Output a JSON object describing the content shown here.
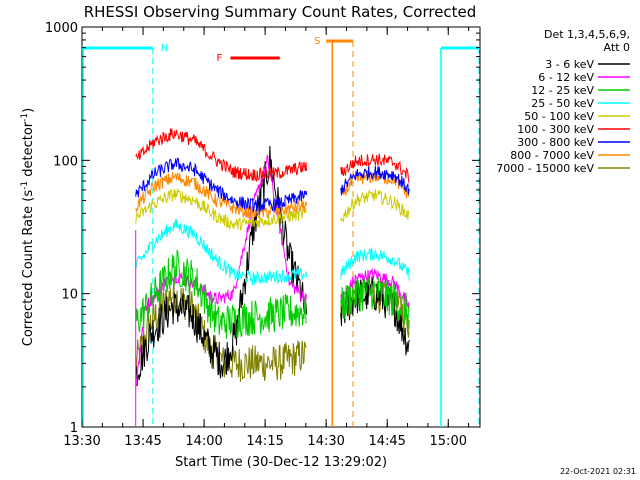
{
  "chart_data": {
    "type": "line",
    "title": "RHESSI Observing Summary Count Rates, Corrected",
    "xlabel": "Start Time (30-Dec-12 13:29:02)",
    "ylabel_main": "Corrected Count Rate (s",
    "ylabel_sup1": "-1",
    "ylabel_mid": " detector",
    "ylabel_sup2": "-1",
    "ylabel_end": ")",
    "yscale": "log",
    "ylim": [
      1,
      1000
    ],
    "xlim_minutes": [
      13.5,
      15.13
    ],
    "x_tick_labels": [
      "13:30",
      "13:45",
      "14:00",
      "14:15",
      "14:30",
      "14:45",
      "15:00"
    ],
    "x_tick_values_hours": [
      13.5,
      13.75,
      14.0,
      14.25,
      14.5,
      14.75,
      15.0
    ],
    "y_tick_labels": [
      "1",
      "10",
      "100",
      "1000"
    ],
    "y_tick_values": [
      1,
      10,
      100,
      1000
    ],
    "legend_header_line1": "Det 1,3,4,5,6,9,",
    "legend_header_line2": "Att 0",
    "legend_placement": "right",
    "annotations": {
      "N": "N",
      "F": "F",
      "S": "S",
      "timestamp": "22-Oct-2021 02:31"
    },
    "series": [
      {
        "name": "3 - 6 keV",
        "color": "#000000"
      },
      {
        "name": "6 - 12 keV",
        "color": "#ff00ff"
      },
      {
        "name": "12 - 25 keV",
        "color": "#00cc00"
      },
      {
        "name": "25 - 50 keV",
        "color": "#00ffff"
      },
      {
        "name": "50 - 100 keV",
        "color": "#cccc00"
      },
      {
        "name": "100 - 300 keV",
        "color": "#ff0000"
      },
      {
        "name": "300 - 800 keV",
        "color": "#0000ff"
      },
      {
        "name": "800 - 7000 keV",
        "color": "#ff8800"
      },
      {
        "name": "7000 - 15000 keV",
        "color": "#808000"
      }
    ],
    "segments_hours": [
      [
        13.716,
        14.425
      ],
      [
        14.555,
        14.84
      ]
    ],
    "profiles": [
      {
        "series": 0,
        "seg1": [
          [
            13.72,
            2.5
          ],
          [
            13.78,
            5
          ],
          [
            13.87,
            8
          ],
          [
            13.95,
            7
          ],
          [
            14.02,
            4
          ],
          [
            14.08,
            3
          ],
          [
            14.13,
            5
          ],
          [
            14.2,
            30
          ],
          [
            14.27,
            100
          ],
          [
            14.3,
            50
          ],
          [
            14.35,
            18
          ],
          [
            14.4,
            10
          ],
          [
            14.42,
            6
          ]
        ],
        "seg2": [
          [
            14.56,
            7
          ],
          [
            14.62,
            9.5
          ],
          [
            14.7,
            10
          ],
          [
            14.78,
            8
          ],
          [
            14.84,
            4
          ]
        ]
      },
      {
        "series": 1,
        "seg1": [
          [
            13.72,
            2
          ],
          [
            13.76,
            8
          ],
          [
            13.87,
            14
          ],
          [
            13.95,
            12
          ],
          [
            14.05,
            9
          ],
          [
            14.12,
            10
          ],
          [
            14.2,
            45
          ],
          [
            14.26,
            100
          ],
          [
            14.3,
            40
          ],
          [
            14.35,
            12
          ],
          [
            14.42,
            9
          ]
        ],
        "seg2": [
          [
            14.56,
            9
          ],
          [
            14.62,
            13
          ],
          [
            14.7,
            14
          ],
          [
            14.78,
            12
          ],
          [
            14.84,
            8
          ]
        ]
      },
      {
        "series": 2,
        "seg1": [
          [
            13.72,
            6
          ],
          [
            13.8,
            10
          ],
          [
            13.88,
            16
          ],
          [
            13.96,
            13
          ],
          [
            14.02,
            8
          ],
          [
            14.06,
            6
          ],
          [
            14.15,
            6.5
          ],
          [
            14.3,
            7
          ],
          [
            14.42,
            7.5
          ]
        ],
        "seg2": [
          [
            14.56,
            8
          ],
          [
            14.62,
            10
          ],
          [
            14.7,
            10.5
          ],
          [
            14.78,
            9
          ],
          [
            14.84,
            7
          ]
        ]
      },
      {
        "series": 3,
        "seg1": [
          [
            13.72,
            16
          ],
          [
            13.8,
            25
          ],
          [
            13.88,
            33
          ],
          [
            13.96,
            28
          ],
          [
            14.05,
            18
          ],
          [
            14.12,
            14
          ],
          [
            14.2,
            13
          ],
          [
            14.3,
            13.5
          ],
          [
            14.42,
            14
          ]
        ],
        "seg2": [
          [
            14.56,
            14
          ],
          [
            14.62,
            19
          ],
          [
            14.7,
            20
          ],
          [
            14.78,
            18
          ],
          [
            14.84,
            14
          ]
        ]
      },
      {
        "series": 4,
        "seg1": [
          [
            13.72,
            37
          ],
          [
            13.8,
            48
          ],
          [
            13.88,
            56
          ],
          [
            13.96,
            50
          ],
          [
            14.05,
            38
          ],
          [
            14.12,
            33
          ],
          [
            14.2,
            34
          ],
          [
            14.3,
            37
          ],
          [
            14.42,
            40
          ]
        ],
        "seg2": [
          [
            14.56,
            36
          ],
          [
            14.62,
            50
          ],
          [
            14.7,
            55
          ],
          [
            14.78,
            48
          ],
          [
            14.84,
            38
          ]
        ]
      },
      {
        "series": 5,
        "seg1": [
          [
            13.72,
            100
          ],
          [
            13.8,
            140
          ],
          [
            13.88,
            160
          ],
          [
            13.96,
            140
          ],
          [
            14.05,
            100
          ],
          [
            14.12,
            82
          ],
          [
            14.2,
            78
          ],
          [
            14.3,
            80
          ],
          [
            14.42,
            90
          ]
        ],
        "seg2": [
          [
            14.56,
            80
          ],
          [
            14.62,
            98
          ],
          [
            14.7,
            102
          ],
          [
            14.78,
            96
          ],
          [
            14.84,
            75
          ]
        ]
      },
      {
        "series": 6,
        "seg1": [
          [
            13.72,
            55
          ],
          [
            13.8,
            80
          ],
          [
            13.88,
            95
          ],
          [
            13.96,
            85
          ],
          [
            14.05,
            60
          ],
          [
            14.12,
            50
          ],
          [
            14.2,
            46
          ],
          [
            14.3,
            47
          ],
          [
            14.42,
            55
          ]
        ],
        "seg2": [
          [
            14.56,
            60
          ],
          [
            14.62,
            78
          ],
          [
            14.7,
            82
          ],
          [
            14.78,
            78
          ],
          [
            14.84,
            60
          ]
        ]
      },
      {
        "series": 7,
        "seg1": [
          [
            13.72,
            45
          ],
          [
            13.8,
            65
          ],
          [
            13.88,
            75
          ],
          [
            13.96,
            68
          ],
          [
            14.05,
            50
          ],
          [
            14.12,
            44
          ],
          [
            14.2,
            40
          ],
          [
            14.3,
            42
          ],
          [
            14.42,
            46
          ]
        ],
        "seg2": [
          [
            14.56,
            55
          ],
          [
            14.62,
            72
          ],
          [
            14.7,
            76
          ],
          [
            14.78,
            72
          ],
          [
            14.84,
            55
          ]
        ]
      },
      {
        "series": 8,
        "seg1": [
          [
            13.72,
            3
          ],
          [
            13.78,
            6
          ],
          [
            13.87,
            10
          ],
          [
            13.95,
            8
          ],
          [
            14.02,
            4
          ],
          [
            14.08,
            3
          ],
          [
            14.2,
            3
          ],
          [
            14.3,
            3
          ],
          [
            14.42,
            3.5
          ]
        ],
        "seg2": [
          [
            14.56,
            8
          ],
          [
            14.62,
            10
          ],
          [
            14.7,
            10
          ],
          [
            14.78,
            9
          ],
          [
            14.84,
            6
          ]
        ]
      }
    ],
    "night_bars_hours": [
      [
        13.5,
        13.79
      ],
      [
        14.97,
        15.13
      ]
    ],
    "night_lines_hours": [
      13.5,
      13.79,
      14.97,
      15.13
    ],
    "saa_lines_hours": [
      14.525,
      14.61
    ],
    "saa_bar_hours": [
      14.5,
      14.61
    ],
    "flare_bar_hours": [
      14.108,
      14.31
    ]
  }
}
